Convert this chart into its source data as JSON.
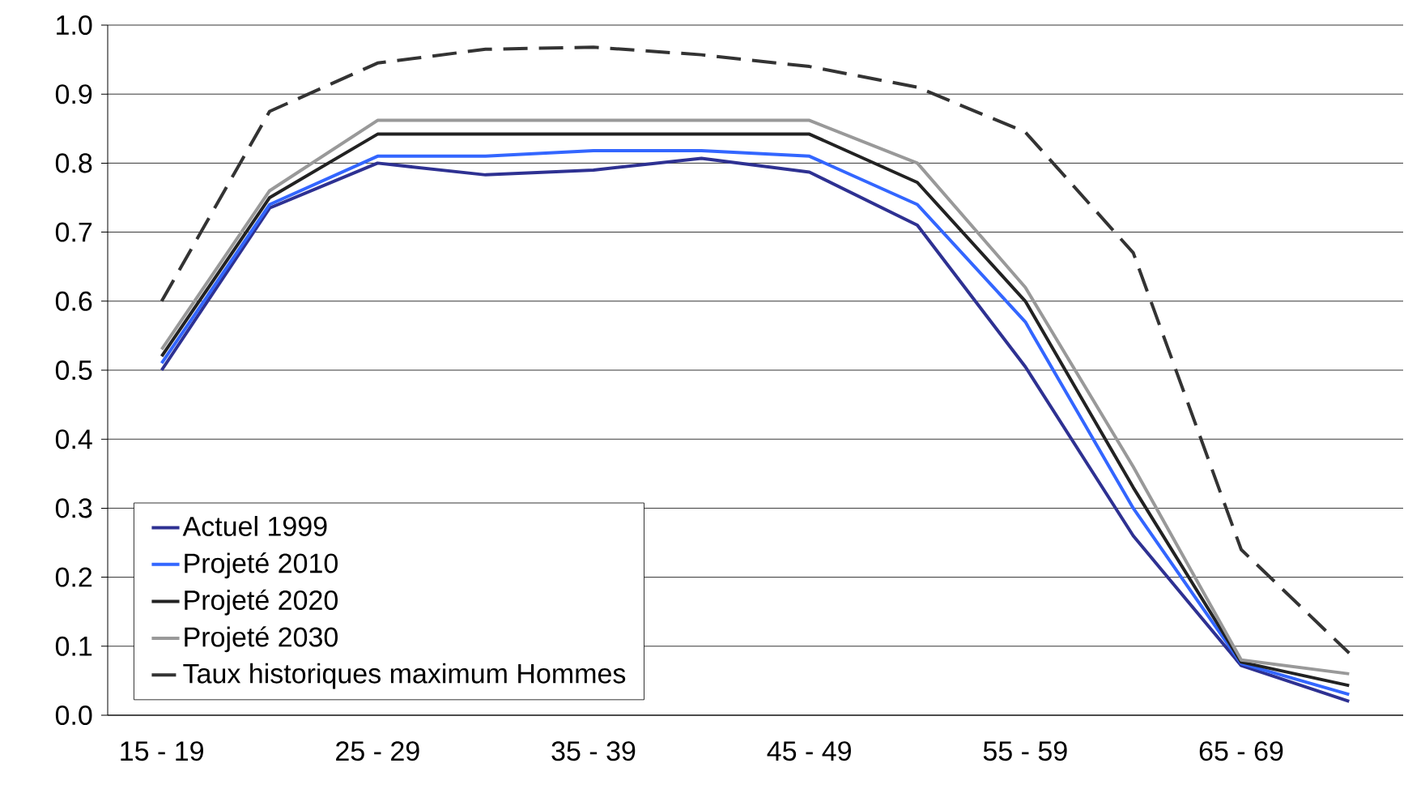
{
  "chart_data": {
    "type": "line",
    "categories": [
      "15 - 19",
      null,
      "25 - 29",
      null,
      "35 - 39",
      null,
      "45 - 49",
      null,
      "55 - 59",
      null,
      "65 - 69",
      null
    ],
    "series": [
      {
        "name": "Actuel 1999",
        "color": "#2e3192",
        "values": [
          0.5,
          0.735,
          0.8,
          0.783,
          0.79,
          0.807,
          0.787,
          0.71,
          0.505,
          0.26,
          0.072,
          0.02
        ]
      },
      {
        "name": "Projeté 2010",
        "color": "#3366ff",
        "values": [
          0.51,
          0.74,
          0.81,
          0.81,
          0.818,
          0.818,
          0.81,
          0.74,
          0.57,
          0.3,
          0.075,
          0.03
        ]
      },
      {
        "name": "Projeté 2020",
        "color": "#222222",
        "values": [
          0.52,
          0.75,
          0.842,
          0.842,
          0.842,
          0.842,
          0.842,
          0.772,
          0.6,
          0.33,
          0.077,
          0.043
        ]
      },
      {
        "name": "Projeté 2030",
        "color": "#999999",
        "values": [
          0.53,
          0.76,
          0.862,
          0.862,
          0.862,
          0.862,
          0.862,
          0.8,
          0.62,
          0.36,
          0.08,
          0.06
        ]
      },
      {
        "name": "Taux historiques maximum Hommes",
        "color": "#333333",
        "line_style": "dashed",
        "values": [
          0.6,
          0.875,
          0.945,
          0.965,
          0.968,
          0.957,
          0.94,
          0.91,
          0.845,
          0.67,
          0.24,
          0.09
        ]
      }
    ],
    "ylim": [
      0,
      1
    ],
    "yticks": [
      {
        "value": 0,
        "label": "0.0"
      },
      {
        "value": 0.1,
        "label": "0.1"
      },
      {
        "value": 0.2,
        "label": "0.2"
      },
      {
        "value": 0.3,
        "label": "0.3"
      },
      {
        "value": 0.4,
        "label": "0.4"
      },
      {
        "value": 0.5,
        "label": "0.5"
      },
      {
        "value": 0.6,
        "label": "0.6"
      },
      {
        "value": 0.7,
        "label": "0.7"
      },
      {
        "value": 0.8,
        "label": "0.8"
      },
      {
        "value": 0.9,
        "label": "0.9"
      },
      {
        "value": 1,
        "label": "1.0"
      }
    ],
    "grid": "y",
    "legend": "bottom left",
    "marker": "none",
    "line_style": "solid"
  }
}
